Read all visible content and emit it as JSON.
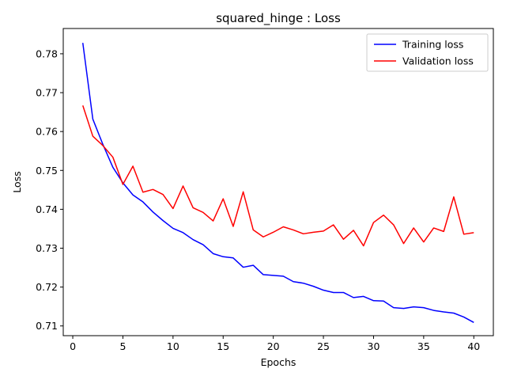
{
  "chart_data": {
    "type": "line",
    "title": "squared_hinge : Loss",
    "xlabel": "Epochs",
    "ylabel": "Loss",
    "xlim": [
      -0.95,
      41.95
    ],
    "ylim": [
      0.7075,
      0.7865
    ],
    "xticks": [
      0,
      5,
      10,
      15,
      20,
      25,
      30,
      35,
      40
    ],
    "yticks": [
      0.71,
      0.72,
      0.73,
      0.74,
      0.75,
      0.76,
      0.77,
      0.78
    ],
    "ytick_labels": [
      "0.71",
      "0.72",
      "0.73",
      "0.74",
      "0.75",
      "0.76",
      "0.77",
      "0.78"
    ],
    "grid": false,
    "legend_position": "top-right",
    "x": [
      1,
      2,
      3,
      4,
      5,
      6,
      7,
      8,
      9,
      10,
      11,
      12,
      13,
      14,
      15,
      16,
      17,
      18,
      19,
      20,
      21,
      22,
      23,
      24,
      25,
      26,
      27,
      28,
      29,
      30,
      31,
      32,
      33,
      34,
      35,
      36,
      37,
      38,
      39,
      40
    ],
    "series": [
      {
        "name": "Training loss",
        "color": "#0000ff",
        "values": [
          0.7828,
          0.7632,
          0.7567,
          0.7508,
          0.7468,
          0.7437,
          0.7419,
          0.7393,
          0.7371,
          0.7351,
          0.734,
          0.7322,
          0.7309,
          0.7286,
          0.7278,
          0.7275,
          0.7251,
          0.7256,
          0.7232,
          0.723,
          0.7228,
          0.7214,
          0.721,
          0.7202,
          0.7192,
          0.7186,
          0.7186,
          0.7173,
          0.7176,
          0.7165,
          0.7164,
          0.7147,
          0.7145,
          0.7149,
          0.7147,
          0.714,
          0.7136,
          0.7133,
          0.7123,
          0.7109
        ]
      },
      {
        "name": "Validation loss",
        "color": "#ff0000",
        "values": [
          0.7667,
          0.7588,
          0.7564,
          0.7534,
          0.7464,
          0.7511,
          0.7444,
          0.7451,
          0.7438,
          0.7402,
          0.746,
          0.7404,
          0.7392,
          0.737,
          0.7427,
          0.7356,
          0.7445,
          0.7347,
          0.7329,
          0.7341,
          0.7355,
          0.7347,
          0.7337,
          0.7341,
          0.7344,
          0.736,
          0.7323,
          0.7346,
          0.7306,
          0.7366,
          0.7385,
          0.736,
          0.7312,
          0.7352,
          0.7316,
          0.7352,
          0.7343,
          0.7432,
          0.7336,
          0.734
        ]
      }
    ]
  }
}
